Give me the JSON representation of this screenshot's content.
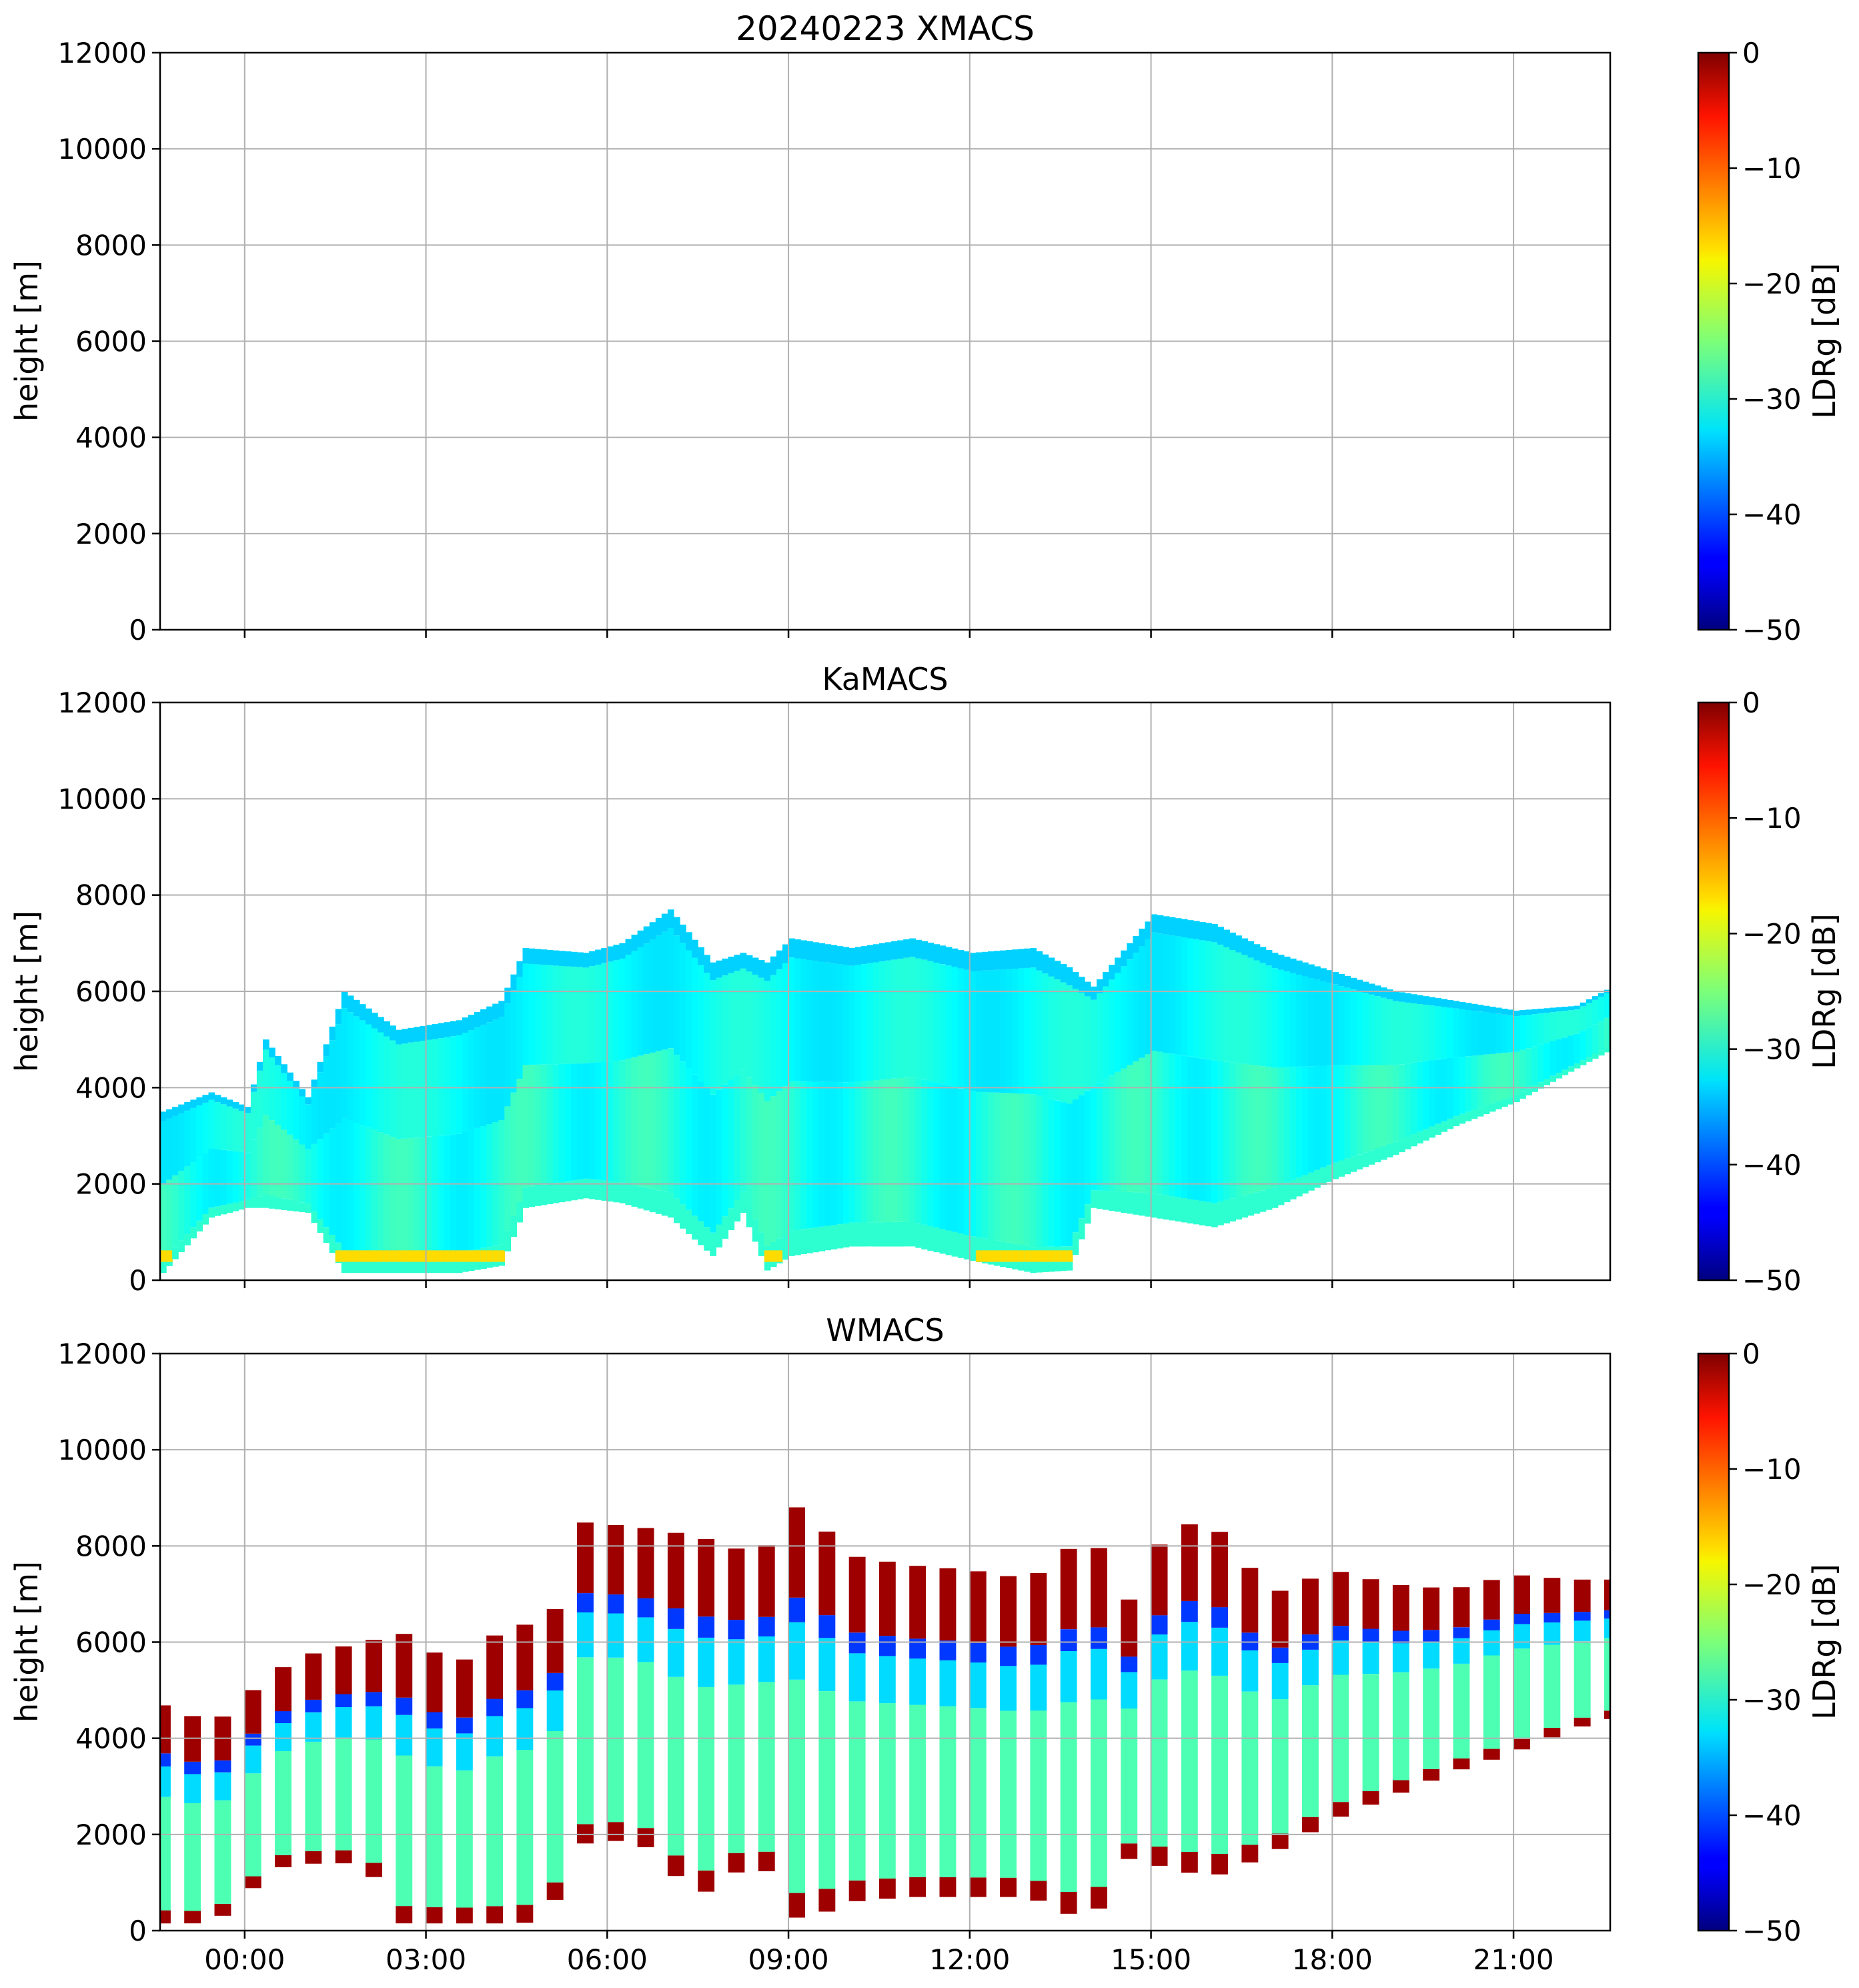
{
  "chart_data": [
    {
      "type": "heatmap",
      "title": "20240223 XMACS",
      "xlabel": "",
      "ylabel": "height [m]",
      "x_unit": "hours",
      "xlim": [
        -1.4,
        22.6
      ],
      "ylim": [
        0,
        12000
      ],
      "yticks": [
        0,
        2000,
        4000,
        6000,
        8000,
        10000,
        12000
      ],
      "xticks": [
        0,
        3,
        6,
        9,
        12,
        15,
        18,
        21
      ],
      "xtick_labels": [],
      "grid": true,
      "colorbar": {
        "label": "LDRg [dB]",
        "range": [
          -50,
          0
        ],
        "ticks": [
          -50,
          -40,
          -30,
          -20,
          -10,
          0
        ],
        "tick_labels": [
          "−50",
          "−40",
          "−30",
          "−20",
          "−10",
          "0"
        ],
        "colormap": "jet"
      },
      "echo_profile": []
    },
    {
      "type": "heatmap",
      "title": "KaMACS",
      "xlabel": "",
      "ylabel": "height [m]",
      "x_unit": "hours",
      "xlim": [
        -1.4,
        22.6
      ],
      "ylim": [
        0,
        12000
      ],
      "yticks": [
        0,
        2000,
        4000,
        6000,
        8000,
        10000,
        12000
      ],
      "xticks": [
        0,
        3,
        6,
        9,
        12,
        15,
        18,
        21
      ],
      "xtick_labels": [],
      "grid": true,
      "colorbar": {
        "label": "LDRg [dB]",
        "range": [
          -50,
          0
        ],
        "ticks": [
          -50,
          -40,
          -30,
          -20,
          -10,
          0
        ],
        "tick_labels": [
          "−50",
          "−40",
          "−30",
          "−20",
          "−10",
          "0"
        ],
        "colormap": "jet"
      },
      "echo_profile": [
        {
          "t": -1.4,
          "base": 150,
          "top": 3500
        },
        {
          "t": -0.6,
          "base": 1300,
          "top": 3900
        },
        {
          "t": 0.0,
          "base": 1500,
          "top": 3600
        },
        {
          "t": 0.3,
          "base": 1500,
          "top": 5000
        },
        {
          "t": 1.0,
          "base": 1400,
          "top": 3800
        },
        {
          "t": 1.6,
          "base": 150,
          "top": 6000
        },
        {
          "t": 2.5,
          "base": 150,
          "top": 5200
        },
        {
          "t": 3.5,
          "base": 150,
          "top": 5400
        },
        {
          "t": 4.2,
          "base": 300,
          "top": 5800
        },
        {
          "t": 4.6,
          "base": 1500,
          "top": 6900
        },
        {
          "t": 5.6,
          "base": 1700,
          "top": 6800
        },
        {
          "t": 6.2,
          "base": 1600,
          "top": 7000
        },
        {
          "t": 7.0,
          "base": 1300,
          "top": 7700
        },
        {
          "t": 7.7,
          "base": 500,
          "top": 6600
        },
        {
          "t": 8.2,
          "base": 1400,
          "top": 6800
        },
        {
          "t": 8.6,
          "base": 200,
          "top": 6600
        },
        {
          "t": 9.0,
          "base": 500,
          "top": 7100
        },
        {
          "t": 10.0,
          "base": 700,
          "top": 6900
        },
        {
          "t": 11.0,
          "base": 700,
          "top": 7100
        },
        {
          "t": 12.0,
          "base": 400,
          "top": 6800
        },
        {
          "t": 13.0,
          "base": 150,
          "top": 6900
        },
        {
          "t": 13.6,
          "base": 200,
          "top": 6500
        },
        {
          "t": 14.0,
          "base": 1500,
          "top": 6100
        },
        {
          "t": 15.0,
          "base": 1300,
          "top": 7600
        },
        {
          "t": 16.0,
          "base": 1100,
          "top": 7400
        },
        {
          "t": 17.0,
          "base": 1500,
          "top": 6800
        },
        {
          "t": 18.0,
          "base": 2100,
          "top": 6400
        },
        {
          "t": 19.0,
          "base": 2600,
          "top": 6000
        },
        {
          "t": 20.0,
          "base": 3200,
          "top": 5800
        },
        {
          "t": 21.0,
          "base": 3700,
          "top": 5600
        },
        {
          "t": 22.0,
          "base": 4400,
          "top": 5700
        },
        {
          "t": 22.6,
          "base": 4800,
          "top": 6100
        }
      ]
    },
    {
      "type": "heatmap",
      "title": "WMACS",
      "xlabel": "",
      "ylabel": "height [m]",
      "x_unit": "hours",
      "xlim": [
        -1.4,
        22.6
      ],
      "ylim": [
        0,
        12000
      ],
      "yticks": [
        0,
        2000,
        4000,
        6000,
        8000,
        10000,
        12000
      ],
      "xticks": [
        0,
        3,
        6,
        9,
        12,
        15,
        18,
        21
      ],
      "xtick_labels": [
        "00:00",
        "03:00",
        "06:00",
        "09:00",
        "12:00",
        "15:00",
        "18:00",
        "21:00"
      ],
      "grid": true,
      "colorbar": {
        "label": "LDRg [dB]",
        "range": [
          -50,
          0
        ],
        "ticks": [
          -50,
          -40,
          -30,
          -20,
          -10,
          0
        ],
        "tick_labels": [
          "−50",
          "−40",
          "−30",
          "−20",
          "−10",
          "0"
        ],
        "colormap": "jet"
      },
      "echo_profile": [
        {
          "t": -1.4,
          "base": 150,
          "top": 4700
        },
        {
          "t": -0.5,
          "base": 150,
          "top": 4300
        },
        {
          "t": 0.5,
          "base": 1300,
          "top": 5400
        },
        {
          "t": 1.2,
          "base": 1400,
          "top": 5800
        },
        {
          "t": 2.0,
          "base": 1400,
          "top": 6000
        },
        {
          "t": 2.6,
          "base": 150,
          "top": 6200
        },
        {
          "t": 3.5,
          "base": 150,
          "top": 5500
        },
        {
          "t": 4.5,
          "base": 150,
          "top": 6500
        },
        {
          "t": 5.0,
          "base": 200,
          "top": 6000
        },
        {
          "t": 5.5,
          "base": 1800,
          "top": 8500
        },
        {
          "t": 6.5,
          "base": 1900,
          "top": 8400
        },
        {
          "t": 7.5,
          "base": 700,
          "top": 8200
        },
        {
          "t": 8.5,
          "base": 1500,
          "top": 7800
        },
        {
          "t": 9.2,
          "base": 150,
          "top": 8900
        },
        {
          "t": 10.0,
          "base": 600,
          "top": 7800
        },
        {
          "t": 11.0,
          "base": 700,
          "top": 7600
        },
        {
          "t": 12.0,
          "base": 700,
          "top": 7500
        },
        {
          "t": 13.0,
          "base": 700,
          "top": 7300
        },
        {
          "t": 14.0,
          "base": 150,
          "top": 8300
        },
        {
          "t": 14.6,
          "base": 1500,
          "top": 6800
        },
        {
          "t": 15.3,
          "base": 1300,
          "top": 8400
        },
        {
          "t": 16.0,
          "base": 1100,
          "top": 8500
        },
        {
          "t": 17.0,
          "base": 1600,
          "top": 7000
        },
        {
          "t": 18.0,
          "base": 2300,
          "top": 7500
        },
        {
          "t": 19.0,
          "base": 2800,
          "top": 7200
        },
        {
          "t": 20.0,
          "base": 3300,
          "top": 7100
        },
        {
          "t": 21.0,
          "base": 3700,
          "top": 7400
        },
        {
          "t": 22.0,
          "base": 4200,
          "top": 7300
        },
        {
          "t": 22.6,
          "base": 4400,
          "top": 7300
        }
      ],
      "scan_period_h": 0.5,
      "scan_duty": 0.55
    }
  ]
}
